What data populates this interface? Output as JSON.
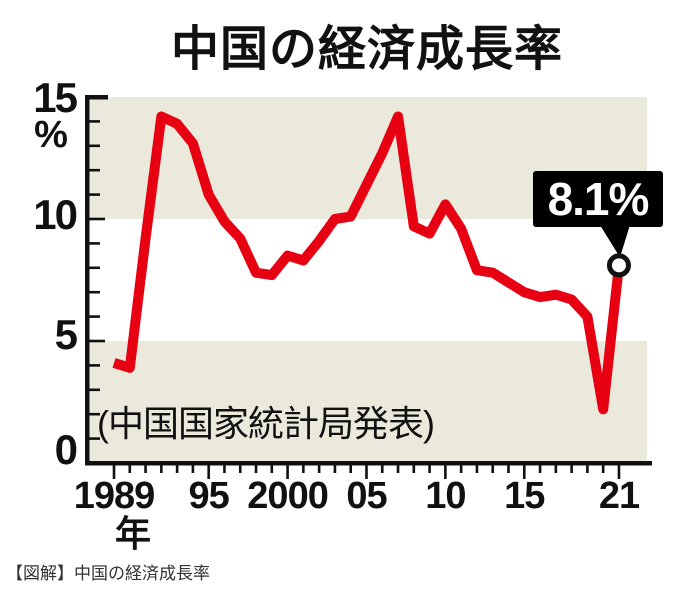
{
  "page": {
    "title": "中国の経済成長率",
    "caption": "【図解】中国の経済成長率"
  },
  "source_note": "(中国国家統計局発表)",
  "annotation": {
    "label": "8.1%"
  },
  "y_axis": {
    "unit": "%",
    "ticks": [
      {
        "value": 15,
        "label": "15"
      },
      {
        "value": 10,
        "label": "10"
      },
      {
        "value": 5,
        "label": "5"
      },
      {
        "value": 0,
        "label": "0"
      }
    ]
  },
  "x_axis": {
    "unit": "年",
    "ticks": [
      {
        "year": 1989,
        "label": "1989",
        "bold": false
      },
      {
        "year": 1995,
        "label": "95",
        "bold": false
      },
      {
        "year": 2000,
        "label": "2000",
        "bold": false
      },
      {
        "year": 2005,
        "label": "05",
        "bold": false
      },
      {
        "year": 2010,
        "label": "10",
        "bold": false
      },
      {
        "year": 2015,
        "label": "15",
        "bold": false
      },
      {
        "year": 2021,
        "label": "21",
        "bold": true
      }
    ]
  },
  "chart_data": {
    "type": "line",
    "title": "中国の経済成長率",
    "xlabel": "年",
    "ylabel": "%",
    "xlim": [
      1989,
      2021
    ],
    "ylim": [
      0,
      15
    ],
    "grid": false,
    "background_bands": [
      [
        0,
        5
      ],
      [
        10,
        15
      ]
    ],
    "x": [
      1989,
      1990,
      1991,
      1992,
      1993,
      1994,
      1995,
      1996,
      1997,
      1998,
      1999,
      2000,
      2001,
      2002,
      2003,
      2004,
      2005,
      2006,
      2007,
      2008,
      2009,
      2010,
      2011,
      2012,
      2013,
      2014,
      2015,
      2016,
      2017,
      2018,
      2019,
      2020,
      2021
    ],
    "values": [
      4.1,
      3.9,
      9.2,
      14.2,
      13.9,
      13.1,
      11.0,
      9.9,
      9.2,
      7.8,
      7.7,
      8.5,
      8.3,
      9.1,
      10.0,
      10.1,
      11.4,
      12.7,
      14.2,
      9.7,
      9.4,
      10.6,
      9.6,
      7.9,
      7.8,
      7.4,
      7.0,
      6.8,
      6.9,
      6.7,
      6.0,
      2.2,
      8.1
    ],
    "highlight": {
      "year": 2021,
      "value": 8.1,
      "label": "8.1%",
      "marker": "open-circle"
    }
  },
  "colors": {
    "line": "#e60012",
    "band": "#ebe9dc",
    "axis": "#111111",
    "callout_bg": "#000000",
    "callout_text": "#ffffff",
    "marker_fill": "#ffffff",
    "caption_text": "#333333"
  }
}
